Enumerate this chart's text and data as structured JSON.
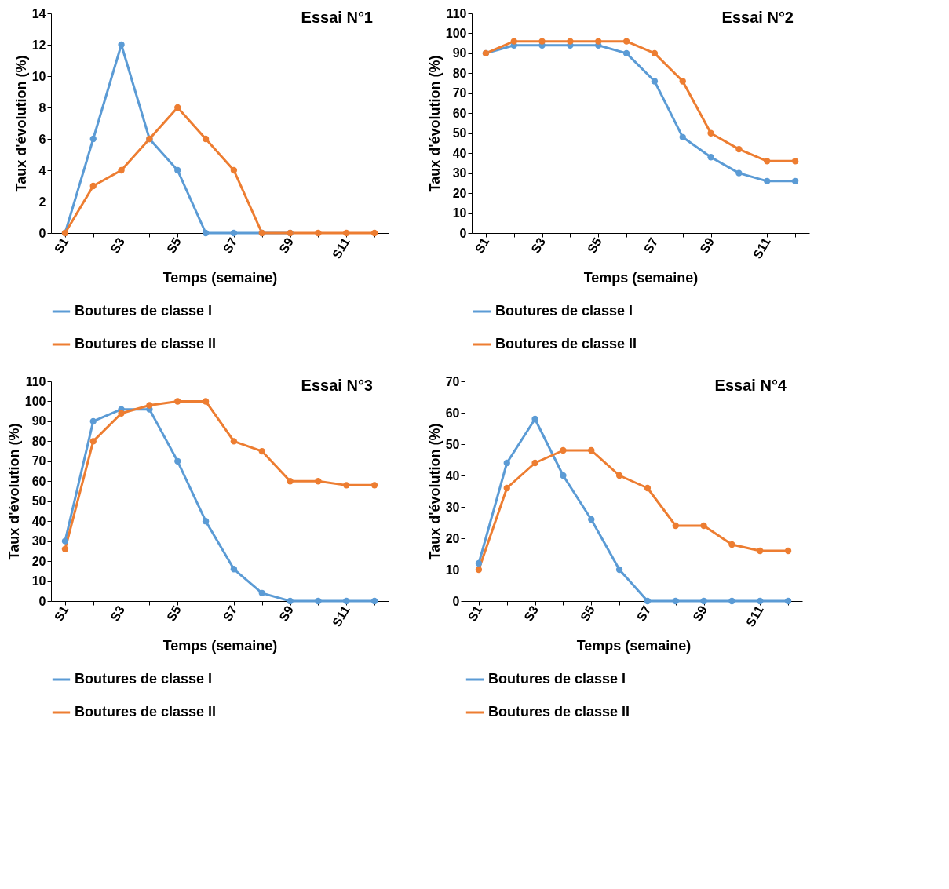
{
  "chart_data": [
    {
      "type": "line",
      "title": "Essai N°1",
      "xlabel": "Temps (semaine)",
      "ylabel": "Taux d'évolution (%)",
      "categories": [
        "S1",
        null,
        "S3",
        null,
        "S5",
        null,
        "S7",
        null,
        "S9",
        null,
        "S11",
        null
      ],
      "ylim": [
        0,
        14
      ],
      "yticks": [
        0,
        2,
        4,
        6,
        8,
        10,
        12,
        14
      ],
      "grid": false,
      "legend": "bottom",
      "marker": "circle",
      "series": [
        {
          "name": "Boutures de classe I",
          "color": "#5b9bd5",
          "values": [
            0,
            6,
            12,
            6,
            4,
            0,
            0,
            0,
            0,
            null,
            null,
            null
          ]
        },
        {
          "name": "Boutures de classe II",
          "color": "#ed7d31",
          "values": [
            0,
            3,
            4,
            6,
            8,
            6,
            4,
            0,
            0,
            0,
            0,
            0
          ]
        }
      ]
    },
    {
      "type": "line",
      "title": "Essai N°2",
      "xlabel": "Temps (semaine)",
      "ylabel": "Taux d'évolution (%)",
      "categories": [
        "S1",
        null,
        "S3",
        null,
        "S5",
        null,
        "S7",
        null,
        "S9",
        null,
        "S11",
        null
      ],
      "ylim": [
        0,
        110
      ],
      "yticks": [
        0,
        10,
        20,
        30,
        40,
        50,
        60,
        70,
        80,
        90,
        100,
        110
      ],
      "grid": false,
      "legend": "bottom",
      "marker": "circle",
      "series": [
        {
          "name": "Boutures de classe I",
          "color": "#5b9bd5",
          "values": [
            90,
            94,
            94,
            94,
            94,
            90,
            76,
            48,
            38,
            30,
            26,
            26
          ]
        },
        {
          "name": "Boutures de classe II",
          "color": "#ed7d31",
          "values": [
            90,
            96,
            96,
            96,
            96,
            96,
            90,
            76,
            50,
            42,
            36,
            36
          ]
        }
      ]
    },
    {
      "type": "line",
      "title": "Essai N°3",
      "xlabel": "Temps (semaine)",
      "ylabel": "Taux d'évolution (%)",
      "categories": [
        "S1",
        null,
        "S3",
        null,
        "S5",
        null,
        "S7",
        null,
        "S9",
        null,
        "S11",
        null
      ],
      "ylim": [
        0,
        110
      ],
      "yticks": [
        0,
        10,
        20,
        30,
        40,
        50,
        60,
        70,
        80,
        90,
        100,
        110
      ],
      "grid": false,
      "legend": "bottom",
      "marker": "circle",
      "series": [
        {
          "name": "Boutures de classe I",
          "color": "#5b9bd5",
          "values": [
            30,
            90,
            96,
            96,
            70,
            40,
            16,
            4,
            0,
            0,
            0,
            0
          ]
        },
        {
          "name": "Boutures de classe II",
          "color": "#ed7d31",
          "values": [
            26,
            80,
            94,
            98,
            100,
            100,
            80,
            75,
            60,
            60,
            58,
            58
          ]
        }
      ]
    },
    {
      "type": "line",
      "title": "Essai N°4",
      "xlabel": "Temps (semaine)",
      "ylabel": "Taux d'évolution (%)",
      "categories": [
        "S1",
        null,
        "S3",
        null,
        "S5",
        null,
        "S7",
        null,
        "S9",
        null,
        "S11",
        null
      ],
      "ylim": [
        0,
        70
      ],
      "yticks": [
        0,
        10,
        20,
        30,
        40,
        50,
        60,
        70
      ],
      "grid": false,
      "legend": "bottom",
      "marker": "circle",
      "series": [
        {
          "name": "Boutures de classe I",
          "color": "#5b9bd5",
          "values": [
            12,
            44,
            58,
            40,
            26,
            10,
            0,
            0,
            0,
            0,
            0,
            0
          ]
        },
        {
          "name": "Boutures de classe II",
          "color": "#ed7d31",
          "values": [
            10,
            36,
            44,
            48,
            48,
            40,
            36,
            24,
            24,
            18,
            16,
            16
          ]
        }
      ]
    }
  ]
}
